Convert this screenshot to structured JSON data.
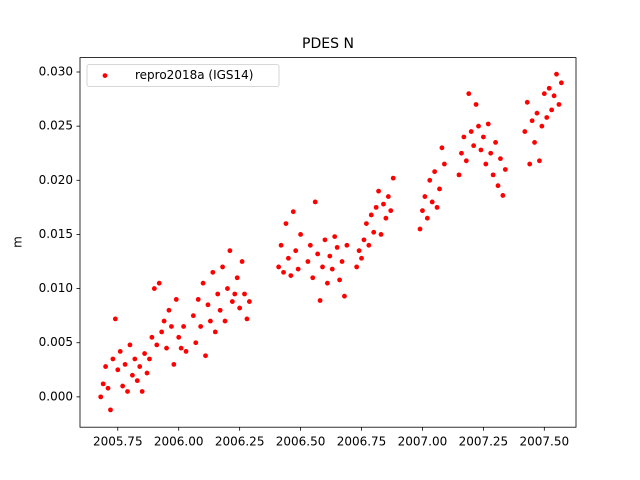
{
  "chart_data": {
    "type": "scatter",
    "title": "PDES N",
    "ylabel": "m",
    "xlim": [
      2005.595,
      2007.63
    ],
    "ylim": [
      -0.0028,
      0.03133
    ],
    "xticks": [
      {
        "value": 2005.75,
        "label": "2005.75"
      },
      {
        "value": 2006.0,
        "label": "2006.00"
      },
      {
        "value": 2006.25,
        "label": "2006.25"
      },
      {
        "value": 2006.5,
        "label": "2006.50"
      },
      {
        "value": 2006.75,
        "label": "2006.75"
      },
      {
        "value": 2007.0,
        "label": "2007.00"
      },
      {
        "value": 2007.25,
        "label": "2007.25"
      },
      {
        "value": 2007.5,
        "label": "2007.50"
      }
    ],
    "yticks": [
      {
        "value": 0,
        "label": "0.000"
      },
      {
        "value": 0.005,
        "label": "0.005"
      },
      {
        "value": 0.01,
        "label": "0.010"
      },
      {
        "value": 0.015,
        "label": "0.015"
      },
      {
        "value": 0.02,
        "label": "0.020"
      },
      {
        "value": 0.025,
        "label": "0.025"
      },
      {
        "value": 0.03,
        "label": "0.030"
      }
    ],
    "legend": "upper left",
    "series": [
      {
        "name": "repro2018a (IGS14)",
        "color": "#ff0000",
        "x": [
          2005.68,
          2005.69,
          2005.7,
          2005.71,
          2005.72,
          2005.73,
          2005.74,
          2005.75,
          2005.76,
          2005.77,
          2005.78,
          2005.79,
          2005.8,
          2005.81,
          2005.82,
          2005.83,
          2005.84,
          2005.85,
          2005.86,
          2005.87,
          2005.88,
          2005.89,
          2005.9,
          2005.91,
          2005.92,
          2005.93,
          2005.94,
          2005.95,
          2005.96,
          2005.97,
          2005.98,
          2005.99,
          2006.0,
          2006.01,
          2006.02,
          2006.03,
          2006.06,
          2006.07,
          2006.08,
          2006.09,
          2006.1,
          2006.11,
          2006.12,
          2006.13,
          2006.14,
          2006.15,
          2006.16,
          2006.17,
          2006.18,
          2006.19,
          2006.2,
          2006.21,
          2006.22,
          2006.23,
          2006.24,
          2006.25,
          2006.26,
          2006.27,
          2006.28,
          2006.29,
          2006.41,
          2006.42,
          2006.43,
          2006.44,
          2006.45,
          2006.46,
          2006.47,
          2006.48,
          2006.49,
          2006.5,
          2006.53,
          2006.54,
          2006.55,
          2006.56,
          2006.57,
          2006.58,
          2006.59,
          2006.6,
          2006.61,
          2006.62,
          2006.63,
          2006.64,
          2006.65,
          2006.66,
          2006.67,
          2006.68,
          2006.69,
          2006.73,
          2006.74,
          2006.75,
          2006.76,
          2006.77,
          2006.78,
          2006.79,
          2006.8,
          2006.81,
          2006.82,
          2006.83,
          2006.84,
          2006.85,
          2006.86,
          2006.87,
          2006.88,
          2006.99,
          2007.0,
          2007.01,
          2007.02,
          2007.03,
          2007.04,
          2007.05,
          2007.06,
          2007.07,
          2007.08,
          2007.09,
          2007.15,
          2007.16,
          2007.17,
          2007.18,
          2007.19,
          2007.2,
          2007.21,
          2007.22,
          2007.23,
          2007.24,
          2007.25,
          2007.26,
          2007.27,
          2007.28,
          2007.29,
          2007.3,
          2007.31,
          2007.32,
          2007.33,
          2007.34,
          2007.42,
          2007.43,
          2007.44,
          2007.45,
          2007.46,
          2007.47,
          2007.48,
          2007.49,
          2007.5,
          2007.51,
          2007.52,
          2007.53,
          2007.54,
          2007.55,
          2007.56,
          2007.57
        ],
        "values": [
          0.0,
          0.0012,
          0.0028,
          0.0008,
          -0.0012,
          0.0035,
          0.0072,
          0.0025,
          0.0042,
          0.001,
          0.003,
          0.0005,
          0.0048,
          0.002,
          0.0035,
          0.0015,
          0.0028,
          0.0005,
          0.004,
          0.0022,
          0.0035,
          0.0055,
          0.01,
          0.0048,
          0.0105,
          0.006,
          0.007,
          0.0045,
          0.008,
          0.0065,
          0.003,
          0.009,
          0.0055,
          0.0045,
          0.0065,
          0.0042,
          0.0075,
          0.005,
          0.009,
          0.0065,
          0.0105,
          0.0038,
          0.0085,
          0.007,
          0.0115,
          0.006,
          0.0095,
          0.008,
          0.012,
          0.007,
          0.01,
          0.0135,
          0.0088,
          0.0095,
          0.011,
          0.0082,
          0.0125,
          0.0095,
          0.0072,
          0.0088,
          0.012,
          0.014,
          0.0115,
          0.016,
          0.0128,
          0.0112,
          0.0171,
          0.0135,
          0.0118,
          0.015,
          0.0125,
          0.014,
          0.011,
          0.018,
          0.0132,
          0.0089,
          0.012,
          0.0145,
          0.0105,
          0.013,
          0.0118,
          0.0148,
          0.0138,
          0.0108,
          0.0125,
          0.0093,
          0.014,
          0.012,
          0.0135,
          0.0128,
          0.0145,
          0.016,
          0.014,
          0.0168,
          0.0152,
          0.0175,
          0.019,
          0.015,
          0.0178,
          0.0165,
          0.0185,
          0.0172,
          0.0202,
          0.0155,
          0.0172,
          0.0185,
          0.0165,
          0.02,
          0.018,
          0.0208,
          0.0175,
          0.0192,
          0.023,
          0.0215,
          0.0205,
          0.0225,
          0.024,
          0.0218,
          0.028,
          0.0245,
          0.0232,
          0.027,
          0.025,
          0.0228,
          0.024,
          0.0215,
          0.0252,
          0.0225,
          0.0205,
          0.0235,
          0.0195,
          0.022,
          0.0186,
          0.021,
          0.0245,
          0.0272,
          0.0215,
          0.0255,
          0.0235,
          0.0262,
          0.0218,
          0.025,
          0.028,
          0.0258,
          0.0285,
          0.0265,
          0.0278,
          0.0298,
          0.027,
          0.029
        ]
      }
    ]
  }
}
